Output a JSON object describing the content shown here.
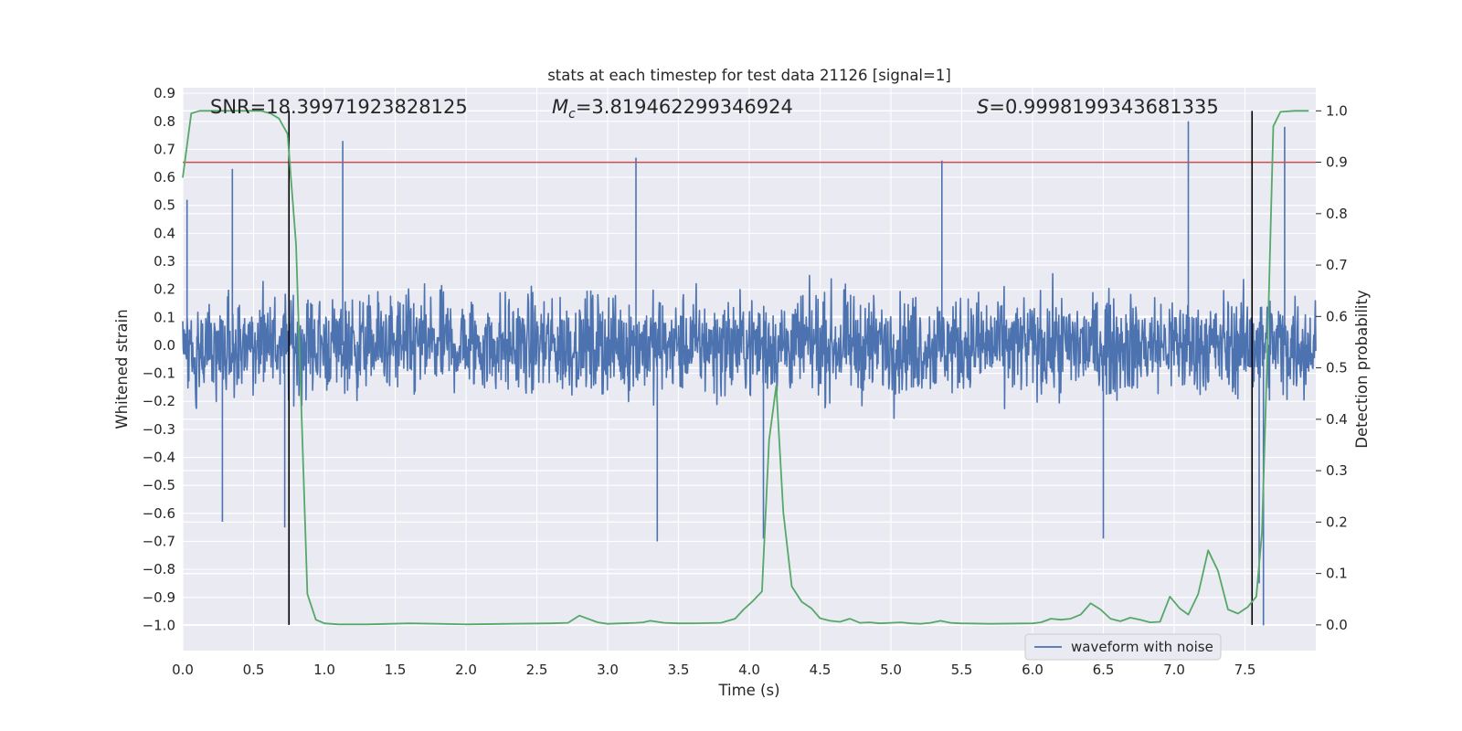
{
  "chart_data": {
    "type": "line",
    "title": "stats at each timestep for test data 21126 [signal=1]",
    "xlabel": "Time (s)",
    "ylabel": "Whitened strain",
    "ylabel_right": "Detection probability",
    "xlim": [
      0.0,
      8.0
    ],
    "ylim": [
      -1.09,
      0.92
    ],
    "ylim_right": [
      -0.05,
      1.045
    ],
    "x_ticks": [
      "0.0",
      "0.5",
      "1.0",
      "1.5",
      "2.0",
      "2.5",
      "3.0",
      "3.5",
      "4.0",
      "4.5",
      "5.0",
      "5.5",
      "6.0",
      "6.5",
      "7.0",
      "7.5"
    ],
    "y_ticks": [
      "0.9",
      "0.8",
      "0.7",
      "0.6",
      "0.5",
      "0.4",
      "0.3",
      "0.2",
      "0.1",
      "0.0",
      "−0.1",
      "−0.2",
      "−0.3",
      "−0.4",
      "−0.5",
      "−0.6",
      "−0.7",
      "−0.8",
      "−0.9",
      "−1.0"
    ],
    "y_ticks_right": [
      "1.0",
      "0.9",
      "0.8",
      "0.7",
      "0.6",
      "0.5",
      "0.4",
      "0.3",
      "0.2",
      "0.1",
      "0.0"
    ],
    "grid": true,
    "legend": {
      "entries": [
        "waveform with noise"
      ],
      "location": "lower right"
    },
    "annotations": {
      "snr": "SNR=18.39971923828125",
      "mc_symbol": "M",
      "mc_sub": "c",
      "mc_value": "=3.819462299346924",
      "s_symbol": "S",
      "s_value": "=0.9998199343681335"
    },
    "threshold": {
      "value": 0.9,
      "axis": "right",
      "color": "#c44e52"
    },
    "vlines": [
      0.75,
      7.55
    ],
    "series": [
      {
        "name": "waveform with noise",
        "axis": "left",
        "color": "#4c72b0",
        "description_values": "dense noise, amplitude typically within ±0.45",
        "peaks": [
          [
            0.03,
            0.52
          ],
          [
            0.35,
            0.63
          ],
          [
            1.13,
            0.73
          ],
          [
            3.2,
            0.67
          ],
          [
            5.36,
            0.66
          ],
          [
            7.1,
            0.8
          ],
          [
            7.78,
            0.78
          ],
          [
            0.28,
            -0.63
          ],
          [
            0.72,
            -0.65
          ],
          [
            3.35,
            -0.7
          ],
          [
            4.1,
            -0.69
          ],
          [
            6.5,
            -0.69
          ],
          [
            7.6,
            -0.85
          ],
          [
            7.63,
            -1.0
          ]
        ]
      },
      {
        "name": "Detection probability",
        "axis": "right",
        "color": "#55a868",
        "x": [
          0.0,
          0.06,
          0.12,
          0.2,
          0.3,
          0.45,
          0.55,
          0.62,
          0.68,
          0.74,
          0.8,
          0.88,
          0.94,
          1.0,
          1.1,
          1.3,
          1.6,
          1.8,
          2.0,
          2.3,
          2.6,
          2.72,
          2.8,
          2.93,
          3.0,
          3.1,
          3.2,
          3.25,
          3.3,
          3.4,
          3.5,
          3.6,
          3.8,
          3.9,
          3.96,
          4.02,
          4.09,
          4.14,
          4.19,
          4.24,
          4.3,
          4.37,
          4.44,
          4.5,
          4.57,
          4.64,
          4.71,
          4.78,
          4.85,
          4.92,
          5.0,
          5.07,
          5.14,
          5.21,
          5.28,
          5.35,
          5.42,
          5.49,
          5.7,
          6.0,
          6.06,
          6.13,
          6.2,
          6.27,
          6.34,
          6.41,
          6.48,
          6.55,
          6.62,
          6.69,
          6.76,
          6.83,
          6.9,
          6.97,
          7.04,
          7.1,
          7.17,
          7.24,
          7.31,
          7.38,
          7.45,
          7.52,
          7.58,
          7.62,
          7.66,
          7.7,
          7.75,
          7.85,
          7.95
        ],
        "values": [
          0.87,
          0.995,
          1.0,
          1.0,
          1.0,
          1.0,
          1.0,
          0.995,
          0.985,
          0.955,
          0.74,
          0.06,
          0.01,
          0.003,
          0.001,
          0.001,
          0.003,
          0.002,
          0.001,
          0.002,
          0.003,
          0.004,
          0.018,
          0.005,
          0.002,
          0.003,
          0.004,
          0.005,
          0.008,
          0.004,
          0.003,
          0.003,
          0.004,
          0.012,
          0.03,
          0.045,
          0.065,
          0.36,
          0.465,
          0.22,
          0.075,
          0.045,
          0.032,
          0.013,
          0.008,
          0.006,
          0.012,
          0.004,
          0.005,
          0.003,
          0.004,
          0.005,
          0.003,
          0.002,
          0.004,
          0.008,
          0.004,
          0.003,
          0.002,
          0.003,
          0.005,
          0.012,
          0.01,
          0.012,
          0.02,
          0.042,
          0.03,
          0.012,
          0.007,
          0.014,
          0.01,
          0.005,
          0.006,
          0.055,
          0.032,
          0.02,
          0.06,
          0.145,
          0.105,
          0.03,
          0.022,
          0.035,
          0.055,
          0.18,
          0.55,
          0.97,
          0.998,
          1.0,
          1.0
        ]
      }
    ]
  }
}
